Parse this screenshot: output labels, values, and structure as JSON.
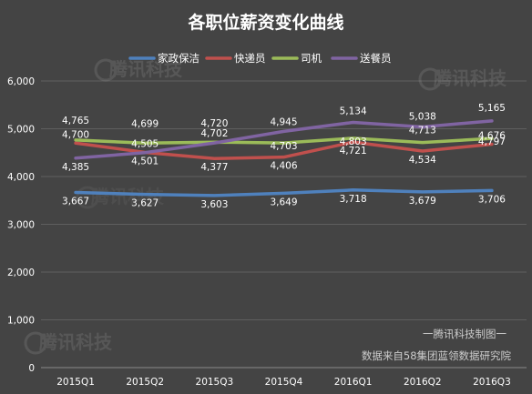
{
  "chart_data": {
    "type": "line",
    "title": "各职位薪资变化曲线",
    "categories": [
      "2015Q1",
      "2015Q2",
      "2015Q3",
      "2015Q4",
      "2016Q1",
      "2016Q2",
      "2016Q3"
    ],
    "ylim": [
      0,
      6000
    ],
    "yticks": [
      0,
      1000,
      2000,
      3000,
      4000,
      5000,
      6000
    ],
    "ytick_labels": [
      "0",
      "1,000",
      "2,000",
      "3,000",
      "4,000",
      "5,000",
      "6,000"
    ],
    "grid": true,
    "legend_position": "top",
    "series": [
      {
        "name": "家政保洁",
        "color": "#4f81bd",
        "values": [
          3667,
          3627,
          3603,
          3649,
          3718,
          3679,
          3706
        ],
        "labels": [
          "3,667",
          "3,627",
          "3,603",
          "3,649",
          "3,718",
          "3,679",
          "3,706"
        ]
      },
      {
        "name": "快递员",
        "color": "#c0504d",
        "values": [
          4700,
          4505,
          4377,
          4406,
          4721,
          4534,
          4676
        ],
        "labels": [
          "4,700",
          "4,505",
          "4,377",
          "4,406",
          "4,721",
          "4,534",
          "4,676"
        ]
      },
      {
        "name": "司机",
        "color": "#9bbb59",
        "values": [
          4765,
          4699,
          4720,
          4703,
          4803,
          4713,
          4797
        ],
        "labels": [
          "4,765",
          "4,699",
          "4,720",
          "4,703",
          "4,803",
          "4,713",
          "4,797"
        ]
      },
      {
        "name": "送餐员",
        "color": "#8064a2",
        "values": [
          4385,
          4501,
          4702,
          4945,
          5134,
          5038,
          5165
        ],
        "labels": [
          "4,385",
          "4,501",
          "4,702",
          "4,945",
          "5,134",
          "5,038",
          "5,165"
        ]
      }
    ],
    "annotations": [
      "一腾讯科技制图一",
      "数据来自58集团蓝领数据研究院"
    ],
    "watermark": "腾讯科技"
  }
}
